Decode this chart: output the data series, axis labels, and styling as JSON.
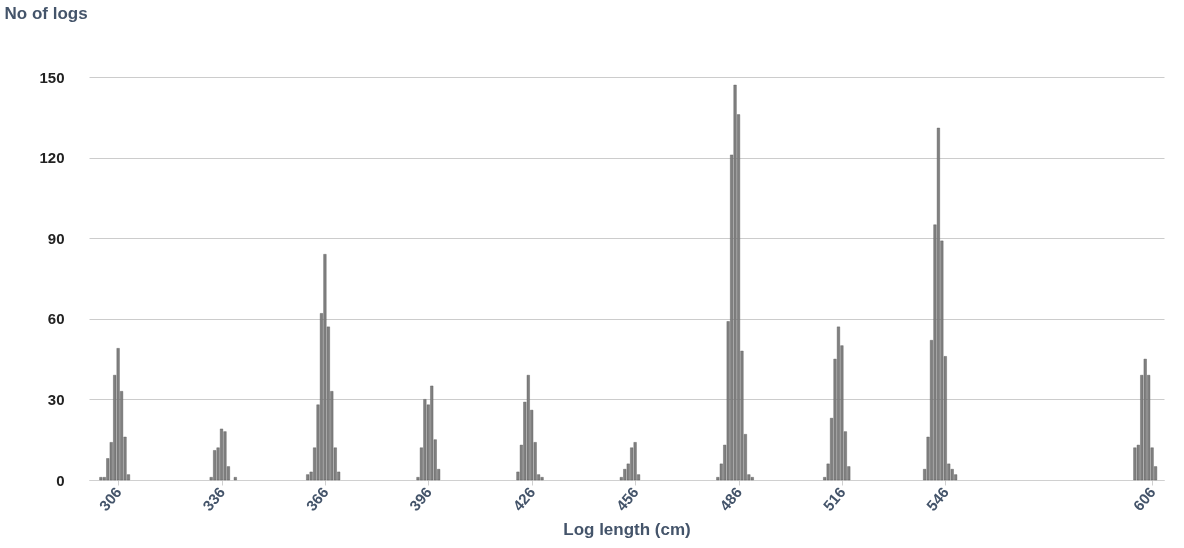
{
  "chart_data": {
    "type": "bar",
    "xlabel": "Log length (cm)",
    "ylabel": "No of logs",
    "x": [
      301,
      302,
      303,
      304,
      305,
      306,
      307,
      308,
      309,
      333,
      334,
      335,
      336,
      337,
      338,
      340,
      361,
      362,
      363,
      364,
      365,
      366,
      367,
      368,
      369,
      370,
      393,
      394,
      395,
      396,
      397,
      398,
      399,
      422,
      423,
      424,
      425,
      426,
      427,
      428,
      429,
      452,
      453,
      454,
      455,
      456,
      457,
      480,
      481,
      482,
      483,
      484,
      485,
      486,
      487,
      488,
      489,
      490,
      511,
      512,
      513,
      514,
      515,
      516,
      517,
      518,
      540,
      541,
      542,
      543,
      544,
      545,
      546,
      547,
      548,
      549,
      601,
      602,
      603,
      604,
      605,
      606,
      607
    ],
    "values": [
      1,
      1,
      8,
      14,
      39,
      49,
      33,
      16,
      2,
      1,
      11,
      12,
      19,
      18,
      5,
      1,
      2,
      3,
      12,
      28,
      62,
      84,
      57,
      33,
      12,
      3,
      1,
      12,
      30,
      28,
      35,
      15,
      4,
      3,
      13,
      29,
      39,
      26,
      14,
      2,
      1,
      1,
      4,
      6,
      12,
      14,
      2,
      1,
      6,
      13,
      59,
      121,
      147,
      136,
      48,
      17,
      2,
      1,
      1,
      6,
      23,
      45,
      57,
      50,
      18,
      5,
      4,
      16,
      52,
      95,
      131,
      89,
      46,
      6,
      4,
      2,
      12,
      13,
      39,
      45,
      39,
      12,
      5
    ],
    "color": "#808080",
    "xlim": [
      299,
      608
    ],
    "xticks": [
      306,
      336,
      366,
      396,
      426,
      456,
      486,
      516,
      546,
      606
    ],
    "ylim": [
      0,
      150
    ],
    "yticks": [
      0,
      30,
      60,
      90,
      120,
      150
    ],
    "grid": "y"
  }
}
